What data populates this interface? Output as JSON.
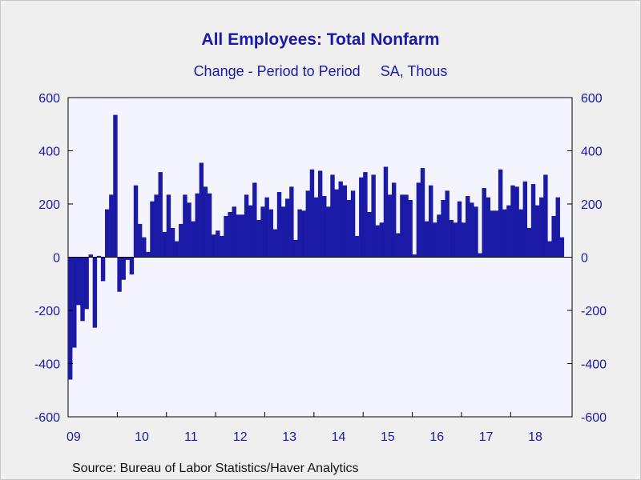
{
  "chart_data": {
    "type": "bar",
    "title": "All Employees: Total Nonfarm",
    "subtitle": "Change - Period to Period     SA, Thous",
    "source": "Source:  Bureau of Labor Statistics/Haver Analytics",
    "ylim": [
      -600,
      600
    ],
    "yticks": [
      600,
      400,
      200,
      0,
      -200,
      -400,
      -600
    ],
    "yticks_right": [
      "600",
      "400",
      "200",
      "0",
      "-200",
      "-400",
      "-600"
    ],
    "x_year_labels": [
      "09",
      "10",
      "11",
      "12",
      "13",
      "14",
      "15",
      "16",
      "17",
      "18"
    ],
    "start": "2009-01",
    "end": "2019-03",
    "bar_color": "#1a1aa6",
    "values": [
      -460,
      -340,
      -180,
      -240,
      -195,
      10,
      -265,
      5,
      -90,
      180,
      235,
      535,
      -130,
      -85,
      -10,
      -65,
      270,
      125,
      75,
      20,
      210,
      235,
      320,
      95,
      235,
      110,
      60,
      125,
      235,
      205,
      135,
      240,
      355,
      265,
      240,
      85,
      100,
      80,
      155,
      170,
      190,
      160,
      160,
      235,
      195,
      280,
      140,
      190,
      225,
      180,
      105,
      245,
      190,
      220,
      265,
      65,
      180,
      175,
      250,
      330,
      225,
      325,
      230,
      190,
      310,
      255,
      285,
      270,
      215,
      250,
      80,
      300,
      320,
      170,
      310,
      120,
      130,
      340,
      235,
      280,
      90,
      235,
      235,
      215,
      10,
      280,
      335,
      135,
      270,
      130,
      160,
      215,
      250,
      140,
      130,
      210,
      130,
      230,
      205,
      190,
      15,
      260,
      225,
      175,
      175,
      330,
      180,
      195,
      270,
      265,
      180,
      285,
      110,
      275,
      195,
      225,
      310,
      60,
      155,
      225,
      75
    ]
  }
}
